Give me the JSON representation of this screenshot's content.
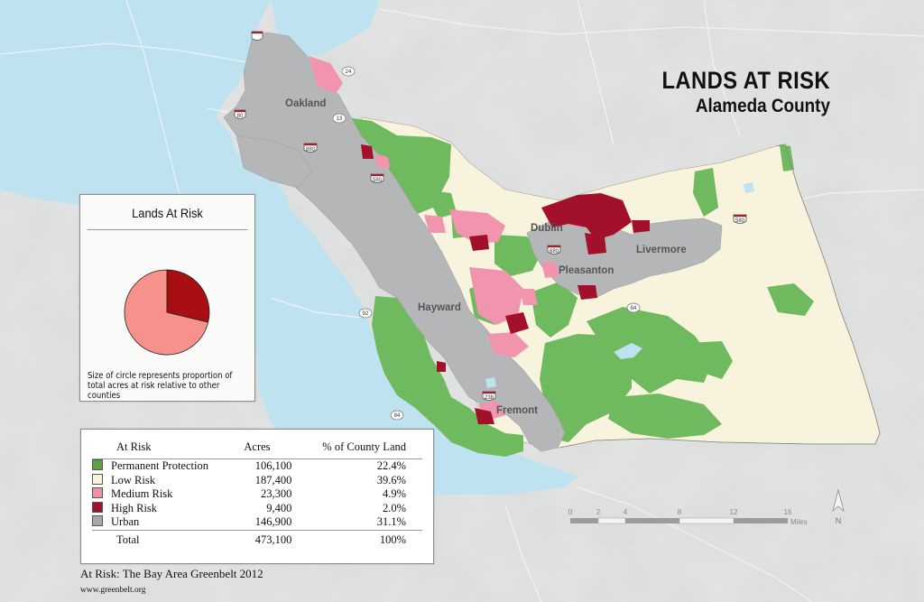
{
  "title": "LANDS AT RISK",
  "subtitle": "Alameda County",
  "colors": {
    "water": "#bfe2f0",
    "terrain": "#dcdedd",
    "permanent_protection": "#6fba5e",
    "low_risk": "#f7f3dc",
    "medium_risk": "#f195ae",
    "high_risk": "#a3102b",
    "urban": "#b4b6b8"
  },
  "cities": [
    "Oakland",
    "Dublin",
    "Livermore",
    "Pleasanton",
    "Hayward",
    "Fremont"
  ],
  "highways": [
    "24",
    "13",
    "80",
    "580",
    "880",
    "92",
    "84",
    "238",
    "680",
    "84"
  ],
  "pie_panel": {
    "title": "Lands At Risk",
    "note": "Size of circle represents proportion of total acres at risk relative to other counties",
    "slices": [
      {
        "label": "Medium Risk",
        "value": 23300,
        "color": "#f6918b"
      },
      {
        "label": "High Risk",
        "value": 9400,
        "color": "#a80f13"
      }
    ]
  },
  "legend_table": {
    "headers": [
      "At Risk",
      "Acres",
      "% of County Land"
    ],
    "rows": [
      {
        "label": "Permanent Protection",
        "acres": "106,100",
        "pct": "22.4%",
        "color": "#5f9e45"
      },
      {
        "label": "Low Risk",
        "acres": "187,400",
        "pct": "39.6%",
        "color": "#fbf4dc"
      },
      {
        "label": "Medium Risk",
        "acres": "23,300",
        "pct": "4.9%",
        "color": "#f28ea2"
      },
      {
        "label": "High Risk",
        "acres": "9,400",
        "pct": "2.0%",
        "color": "#a3102b"
      },
      {
        "label": "Urban",
        "acres": "146,900",
        "pct": "31.1%",
        "color": "#a6a8aa"
      }
    ],
    "total": {
      "label": "Total",
      "acres": "473,100",
      "pct": "100%"
    }
  },
  "scale_bar": {
    "ticks": [
      "0",
      "2",
      "4",
      "8",
      "12",
      "16"
    ],
    "unit": "Miles"
  },
  "north_label": "N",
  "credit": "At Risk: The Bay Area Greenbelt 2012",
  "credit_url": "www.greenbelt.org"
}
